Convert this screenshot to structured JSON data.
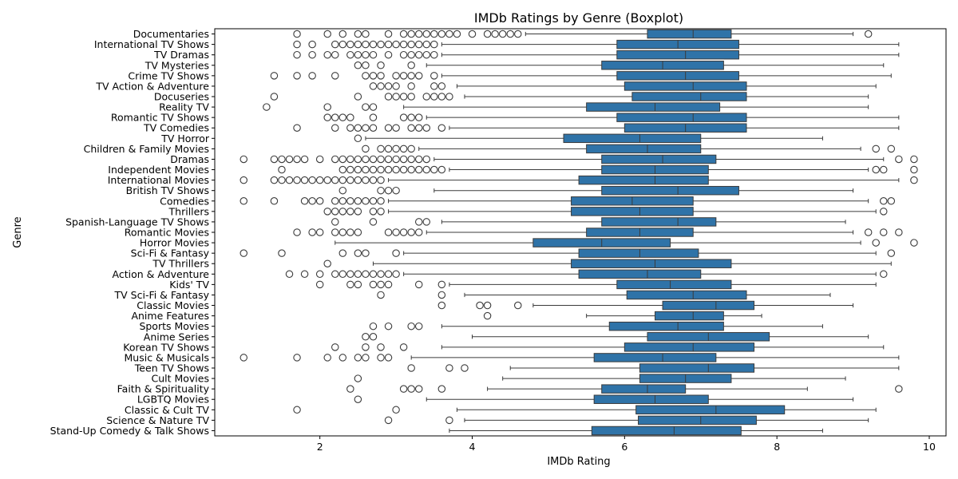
{
  "chart_data": {
    "type": "boxplot",
    "orientation": "horizontal",
    "title": "IMDb Ratings by Genre (Boxplot)",
    "xlabel": "IMDb Rating",
    "ylabel": "Genre",
    "xlim": [
      0.62,
      10.22
    ],
    "xticks": [
      2,
      4,
      6,
      8,
      10
    ],
    "grid": false,
    "box_color": "#2f73a8",
    "line_color": "#3b3b3b",
    "categories": [
      {
        "genre": "Documentaries",
        "q1": 6.3,
        "med": 6.9,
        "q3": 7.4,
        "lo": 4.7,
        "hi": 9.0,
        "outliers": [
          1.7,
          2.1,
          2.3,
          2.5,
          2.6,
          2.9,
          3.1,
          3.2,
          3.3,
          3.4,
          3.5,
          3.6,
          3.7,
          3.8,
          4.0,
          4.2,
          4.3,
          4.4,
          4.5,
          4.6,
          9.2
        ]
      },
      {
        "genre": "International TV Shows",
        "q1": 5.9,
        "med": 6.7,
        "q3": 7.5,
        "lo": 3.6,
        "hi": 9.6,
        "outliers": [
          1.7,
          1.9,
          2.2,
          2.3,
          2.4,
          2.5,
          2.6,
          2.7,
          2.8,
          2.9,
          3.0,
          3.1,
          3.2,
          3.3,
          3.4,
          3.5
        ]
      },
      {
        "genre": "TV Dramas",
        "q1": 5.9,
        "med": 6.8,
        "q3": 7.5,
        "lo": 3.6,
        "hi": 9.6,
        "outliers": [
          1.7,
          1.9,
          2.1,
          2.2,
          2.4,
          2.5,
          2.6,
          2.7,
          2.9,
          3.1,
          3.2,
          3.3,
          3.4,
          3.5
        ]
      },
      {
        "genre": "TV Mysteries",
        "q1": 5.7,
        "med": 6.5,
        "q3": 7.3,
        "lo": 3.4,
        "hi": 9.4,
        "outliers": [
          2.5,
          2.6,
          2.8,
          3.2
        ]
      },
      {
        "genre": "Crime TV Shows",
        "q1": 5.9,
        "med": 6.8,
        "q3": 7.5,
        "lo": 3.6,
        "hi": 9.5,
        "outliers": [
          1.4,
          1.7,
          1.9,
          2.2,
          2.6,
          2.7,
          2.8,
          3.0,
          3.1,
          3.2,
          3.3,
          3.5
        ]
      },
      {
        "genre": "TV Action & Adventure",
        "q1": 6.0,
        "med": 6.9,
        "q3": 7.6,
        "lo": 3.8,
        "hi": 9.3,
        "outliers": [
          2.7,
          2.8,
          2.9,
          3.0,
          3.2,
          3.5,
          3.6
        ]
      },
      {
        "genre": "Docuseries",
        "q1": 6.1,
        "med": 7.0,
        "q3": 7.6,
        "lo": 3.9,
        "hi": 9.2,
        "outliers": [
          1.4,
          2.5,
          2.9,
          3.0,
          3.1,
          3.2,
          3.4,
          3.5,
          3.6,
          3.7
        ]
      },
      {
        "genre": "Reality TV",
        "q1": 5.5,
        "med": 6.4,
        "q3": 7.25,
        "lo": 3.1,
        "hi": 9.2,
        "outliers": [
          1.3,
          2.1,
          2.6,
          2.7
        ]
      },
      {
        "genre": "Romantic TV Shows",
        "q1": 5.9,
        "med": 6.9,
        "q3": 7.6,
        "lo": 3.4,
        "hi": 9.6,
        "outliers": [
          2.1,
          2.2,
          2.3,
          2.4,
          2.7,
          3.1,
          3.2,
          3.3
        ]
      },
      {
        "genre": "TV Comedies",
        "q1": 6.0,
        "med": 6.8,
        "q3": 7.6,
        "lo": 3.7,
        "hi": 9.6,
        "outliers": [
          1.7,
          2.2,
          2.4,
          2.5,
          2.6,
          2.7,
          2.9,
          3.0,
          3.2,
          3.3,
          3.4,
          3.6
        ]
      },
      {
        "genre": "TV Horror",
        "q1": 5.2,
        "med": 6.2,
        "q3": 7.0,
        "lo": 2.6,
        "hi": 8.6,
        "outliers": [
          2.5
        ]
      },
      {
        "genre": "Children & Family Movies",
        "q1": 5.5,
        "med": 6.3,
        "q3": 7.0,
        "lo": 3.3,
        "hi": 9.1,
        "outliers": [
          2.6,
          2.8,
          2.9,
          3.0,
          3.1,
          3.2,
          9.3,
          9.5
        ]
      },
      {
        "genre": "Dramas",
        "q1": 5.7,
        "med": 6.5,
        "q3": 7.2,
        "lo": 3.5,
        "hi": 9.4,
        "outliers": [
          1.0,
          1.4,
          1.5,
          1.6,
          1.7,
          1.8,
          2.0,
          2.2,
          2.3,
          2.4,
          2.5,
          2.6,
          2.7,
          2.8,
          2.9,
          3.0,
          3.1,
          3.2,
          3.3,
          3.4,
          9.6,
          9.8
        ]
      },
      {
        "genre": "Independent Movies",
        "q1": 5.7,
        "med": 6.4,
        "q3": 7.1,
        "lo": 3.7,
        "hi": 9.2,
        "outliers": [
          1.5,
          2.3,
          2.4,
          2.5,
          2.6,
          2.7,
          2.8,
          2.9,
          3.0,
          3.1,
          3.2,
          3.3,
          3.4,
          3.5,
          3.6,
          9.3,
          9.4,
          9.8
        ]
      },
      {
        "genre": "International Movies",
        "q1": 5.4,
        "med": 6.4,
        "q3": 7.1,
        "lo": 2.9,
        "hi": 9.6,
        "outliers": [
          1.0,
          1.4,
          1.5,
          1.6,
          1.7,
          1.8,
          1.9,
          2.0,
          2.1,
          2.2,
          2.3,
          2.4,
          2.5,
          2.6,
          2.7,
          2.8,
          9.8
        ]
      },
      {
        "genre": "British TV Shows",
        "q1": 5.7,
        "med": 6.7,
        "q3": 7.5,
        "lo": 3.5,
        "hi": 9.0,
        "outliers": [
          2.3,
          2.8,
          2.9,
          3.0
        ]
      },
      {
        "genre": "Comedies",
        "q1": 5.3,
        "med": 6.1,
        "q3": 6.9,
        "lo": 2.9,
        "hi": 9.2,
        "outliers": [
          1.0,
          1.4,
          1.8,
          1.9,
          2.0,
          2.2,
          2.3,
          2.4,
          2.5,
          2.6,
          2.7,
          2.8,
          9.4,
          9.5
        ]
      },
      {
        "genre": "Thrillers",
        "q1": 5.3,
        "med": 6.2,
        "q3": 6.9,
        "lo": 2.9,
        "hi": 9.3,
        "outliers": [
          2.1,
          2.2,
          2.3,
          2.4,
          2.5,
          2.7,
          2.8,
          9.4
        ]
      },
      {
        "genre": "Spanish-Language TV Shows",
        "q1": 5.7,
        "med": 6.7,
        "q3": 7.2,
        "lo": 3.6,
        "hi": 8.9,
        "outliers": [
          2.2,
          2.7,
          3.3,
          3.4
        ]
      },
      {
        "genre": "Romantic Movies",
        "q1": 5.5,
        "med": 6.2,
        "q3": 6.9,
        "lo": 3.4,
        "hi": 9.0,
        "outliers": [
          1.7,
          1.9,
          2.0,
          2.2,
          2.3,
          2.4,
          2.5,
          2.9,
          3.0,
          3.1,
          3.2,
          3.3,
          9.2,
          9.4,
          9.6
        ]
      },
      {
        "genre": "Horror Movies",
        "q1": 4.8,
        "med": 5.7,
        "q3": 6.6,
        "lo": 2.2,
        "hi": 9.1,
        "outliers": [
          9.3,
          9.8
        ]
      },
      {
        "genre": "Sci-Fi & Fantasy",
        "q1": 5.4,
        "med": 6.2,
        "q3": 6.97,
        "lo": 3.1,
        "hi": 9.3,
        "outliers": [
          1.0,
          1.5,
          2.3,
          2.5,
          2.6,
          3.0,
          9.5
        ]
      },
      {
        "genre": "TV Thrillers",
        "q1": 5.3,
        "med": 6.4,
        "q3": 7.4,
        "lo": 2.7,
        "hi": 9.5,
        "outliers": [
          2.1
        ]
      },
      {
        "genre": "Action & Adventure",
        "q1": 5.4,
        "med": 6.3,
        "q3": 7.0,
        "lo": 3.1,
        "hi": 9.3,
        "outliers": [
          1.6,
          1.8,
          2.0,
          2.2,
          2.3,
          2.4,
          2.5,
          2.6,
          2.7,
          2.8,
          2.9,
          3.0,
          9.4
        ]
      },
      {
        "genre": "Kids' TV",
        "q1": 5.9,
        "med": 6.6,
        "q3": 7.4,
        "lo": 3.7,
        "hi": 9.3,
        "outliers": [
          2.0,
          2.4,
          2.5,
          2.7,
          2.8,
          2.9,
          3.3,
          3.6
        ]
      },
      {
        "genre": "TV Sci-Fi & Fantasy",
        "q1": 6.03,
        "med": 6.9,
        "q3": 7.6,
        "lo": 3.9,
        "hi": 8.7,
        "outliers": [
          2.8,
          3.6
        ]
      },
      {
        "genre": "Classic Movies",
        "q1": 6.5,
        "med": 7.2,
        "q3": 7.7,
        "lo": 4.8,
        "hi": 9.0,
        "outliers": [
          3.6,
          4.1,
          4.2,
          4.6
        ]
      },
      {
        "genre": "Anime Features",
        "q1": 6.4,
        "med": 6.9,
        "q3": 7.3,
        "lo": 5.5,
        "hi": 7.8,
        "outliers": [
          4.2
        ]
      },
      {
        "genre": "Sports Movies",
        "q1": 5.8,
        "med": 6.7,
        "q3": 7.3,
        "lo": 3.6,
        "hi": 8.6,
        "outliers": [
          2.7,
          2.9,
          3.2,
          3.3
        ]
      },
      {
        "genre": "Anime Series",
        "q1": 6.3,
        "med": 7.1,
        "q3": 7.9,
        "lo": 4.0,
        "hi": 9.2,
        "outliers": [
          2.6,
          2.7
        ]
      },
      {
        "genre": "Korean TV Shows",
        "q1": 6.0,
        "med": 6.9,
        "q3": 7.7,
        "lo": 3.6,
        "hi": 9.4,
        "outliers": [
          2.2,
          2.6,
          2.8,
          3.1
        ]
      },
      {
        "genre": "Music & Musicals",
        "q1": 5.6,
        "med": 6.5,
        "q3": 7.2,
        "lo": 3.2,
        "hi": 9.6,
        "outliers": [
          1.0,
          1.7,
          2.1,
          2.3,
          2.5,
          2.6,
          2.8,
          2.9
        ]
      },
      {
        "genre": "Teen TV Shows",
        "q1": 6.2,
        "med": 7.1,
        "q3": 7.7,
        "lo": 4.5,
        "hi": 9.6,
        "outliers": [
          3.2,
          3.7,
          3.9
        ]
      },
      {
        "genre": "Cult Movies",
        "q1": 6.2,
        "med": 6.8,
        "q3": 7.4,
        "lo": 4.4,
        "hi": 8.9,
        "outliers": [
          2.5
        ]
      },
      {
        "genre": "Faith & Spirituality",
        "q1": 5.7,
        "med": 6.3,
        "q3": 6.8,
        "lo": 4.2,
        "hi": 8.4,
        "outliers": [
          2.4,
          3.1,
          3.2,
          3.3,
          3.6,
          9.6
        ]
      },
      {
        "genre": "LGBTQ Movies",
        "q1": 5.6,
        "med": 6.4,
        "q3": 7.1,
        "lo": 3.4,
        "hi": 9.0,
        "outliers": [
          2.5
        ]
      },
      {
        "genre": "Classic & Cult TV",
        "q1": 6.15,
        "med": 7.2,
        "q3": 8.1,
        "lo": 3.8,
        "hi": 9.3,
        "outliers": [
          1.7,
          3.0
        ]
      },
      {
        "genre": "Science & Nature TV",
        "q1": 6.18,
        "med": 7.0,
        "q3": 7.73,
        "lo": 3.9,
        "hi": 9.2,
        "outliers": [
          2.9,
          3.7
        ]
      },
      {
        "genre": "Stand-Up Comedy & Talk Shows",
        "q1": 5.57,
        "med": 6.65,
        "q3": 7.53,
        "lo": 3.7,
        "hi": 8.6,
        "outliers": []
      }
    ]
  }
}
